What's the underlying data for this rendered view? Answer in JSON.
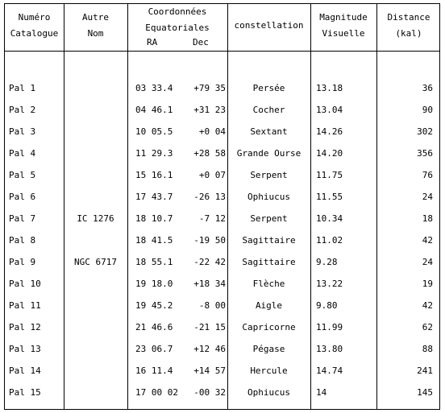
{
  "headers": {
    "catalogue_line1": "Numéro",
    "catalogue_line2": "Catalogue",
    "autre_line1": "Autre",
    "autre_line2": "Nom",
    "coord_line1": "Coordonnées",
    "coord_line2": "Equatoriales",
    "ra": "RA",
    "dec": "Dec",
    "constellation": "constellation",
    "magnitude_line1": "Magnitude",
    "magnitude_line2": "Visuelle",
    "distance_line1": "Distance",
    "distance_line2": "(kal)"
  },
  "rows": [
    {
      "catalogue": "Pal 1",
      "autre": "",
      "ra": "03 33.4",
      "dec": "+79 35",
      "constellation": "Persée",
      "magnitude": "13.18",
      "distance": "36"
    },
    {
      "catalogue": "Pal 2",
      "autre": "",
      "ra": "04 46.1",
      "dec": "+31 23",
      "constellation": "Cocher",
      "magnitude": "13.04",
      "distance": "90"
    },
    {
      "catalogue": "Pal 3",
      "autre": "",
      "ra": "10 05.5",
      "dec": "+0 04",
      "constellation": "Sextant",
      "magnitude": "14.26",
      "distance": "302"
    },
    {
      "catalogue": "Pal 4",
      "autre": "",
      "ra": "11 29.3",
      "dec": "+28 58",
      "constellation": "Grande Ourse",
      "magnitude": "14.20",
      "distance": "356"
    },
    {
      "catalogue": "Pal 5",
      "autre": "",
      "ra": "15 16.1",
      "dec": "+0 07",
      "constellation": "Serpent",
      "magnitude": "11.75",
      "distance": "76"
    },
    {
      "catalogue": "Pal 6",
      "autre": "",
      "ra": "17 43.7",
      "dec": "-26 13",
      "constellation": "Ophiucus",
      "magnitude": "11.55",
      "distance": "24"
    },
    {
      "catalogue": "Pal 7",
      "autre": "IC 1276",
      "ra": "18 10.7",
      "dec": "-7 12",
      "constellation": "Serpent",
      "magnitude": "10.34",
      "distance": "18"
    },
    {
      "catalogue": "Pal 8",
      "autre": "",
      "ra": "18 41.5",
      "dec": "-19 50",
      "constellation": "Sagittaire",
      "magnitude": "11.02",
      "distance": "42"
    },
    {
      "catalogue": "Pal 9",
      "autre": "NGC 6717",
      "ra": "18 55.1",
      "dec": "-22 42",
      "constellation": "Sagittaire",
      "magnitude": "9.28",
      "distance": "24"
    },
    {
      "catalogue": "Pal 10",
      "autre": "",
      "ra": "19 18.0",
      "dec": "+18 34",
      "constellation": "Flèche",
      "magnitude": "13.22",
      "distance": "19"
    },
    {
      "catalogue": "Pal 11",
      "autre": "",
      "ra": "19 45.2",
      "dec": "-8 00",
      "constellation": "Aigle",
      "magnitude": "9.80",
      "distance": "42"
    },
    {
      "catalogue": "Pal 12",
      "autre": "",
      "ra": "21 46.6",
      "dec": "-21 15",
      "constellation": "Capricorne",
      "magnitude": "11.99",
      "distance": "62"
    },
    {
      "catalogue": "Pal 13",
      "autre": "",
      "ra": "23 06.7",
      "dec": "+12 46",
      "constellation": "Pégase",
      "magnitude": "13.80",
      "distance": "88"
    },
    {
      "catalogue": "Pal 14",
      "autre": "",
      "ra": "16 11.4",
      "dec": "+14 57",
      "constellation": "Hercule",
      "magnitude": "14.74",
      "distance": "241"
    },
    {
      "catalogue": "Pal 15",
      "autre": "",
      "ra": "17 00 02",
      "dec": "-00 32",
      "constellation": "Ophiucus",
      "magnitude": "14",
      "distance": "145"
    }
  ]
}
